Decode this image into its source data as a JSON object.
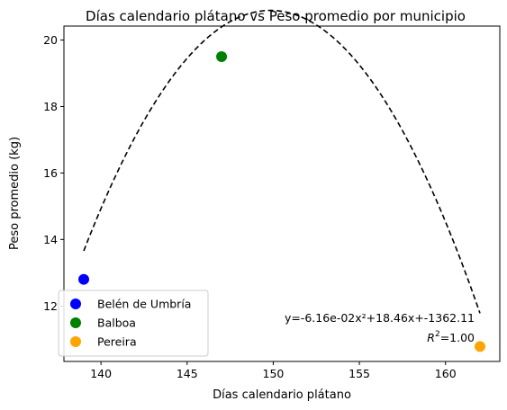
{
  "chart_data": {
    "type": "scatter",
    "title": "Días calendario plátano vs Peso promedio por municipio",
    "xlabel": "Días calendario plátano",
    "ylabel": "Peso promedio (kg)",
    "xlim": [
      137.85,
      163.15
    ],
    "ylim": [
      10.33,
      20.42
    ],
    "xticks": [
      140,
      145,
      150,
      155,
      160
    ],
    "yticks": [
      12,
      14,
      16,
      18,
      20
    ],
    "legend_position": "lower left",
    "grid": false,
    "series": [
      {
        "name": "Belén de Umbría",
        "color": "#0000ff",
        "x": [
          139
        ],
        "y": [
          12.8
        ]
      },
      {
        "name": "Balboa",
        "color": "#008000",
        "x": [
          147
        ],
        "y": [
          19.5
        ]
      },
      {
        "name": "Pereira",
        "color": "#ffa500",
        "x": [
          162
        ],
        "y": [
          10.78
        ]
      }
    ],
    "fit": {
      "type": "quadratic",
      "a": -0.0616,
      "b": 18.46,
      "c": -1362.11,
      "x_range": [
        139,
        162
      ],
      "style": "dashed",
      "color": "#000000"
    },
    "annotations": {
      "equation": "y=-6.16e-02x²+18.46x+-1362.11",
      "r2_prefix": "R",
      "r2_sup": "2",
      "r2_value": "=1.00"
    }
  }
}
